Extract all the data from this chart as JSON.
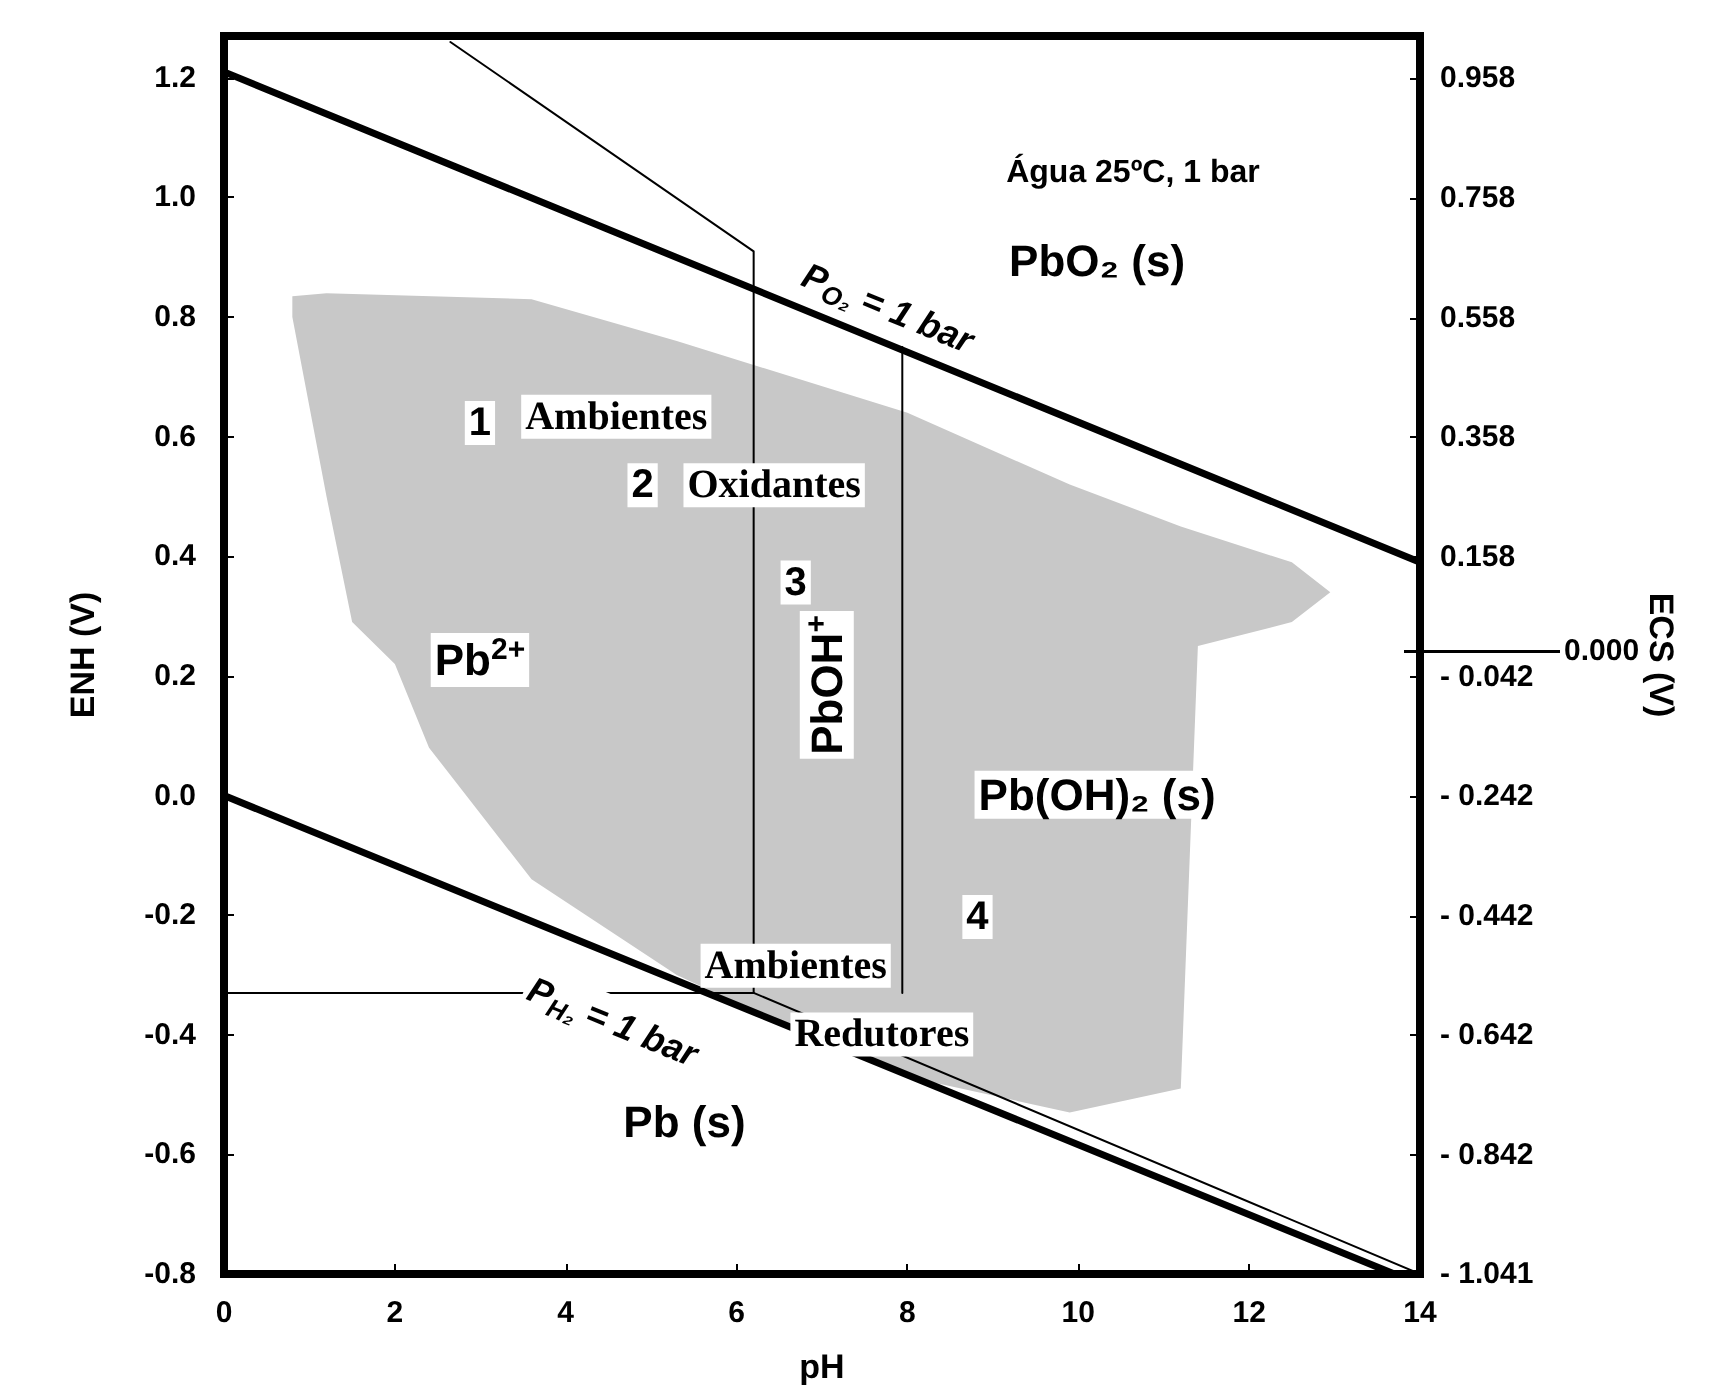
{
  "chart_data": {
    "type": "line",
    "xlabel": "pH",
    "ylabel": "ENH (V)",
    "y2label": "ECS (V)",
    "xlim": [
      0,
      14
    ],
    "xticks": [
      0,
      2,
      4,
      6,
      8,
      10,
      12,
      14
    ],
    "ylim": [
      -0.8,
      1.27
    ],
    "yticks": [
      {
        "value": -0.8,
        "label": "-0.8"
      },
      {
        "value": -0.6,
        "label": "-0.6"
      },
      {
        "value": -0.4,
        "label": "-0.4"
      },
      {
        "value": -0.2,
        "label": "-0.2"
      },
      {
        "value": 0,
        "label": "0.0"
      },
      {
        "value": 0.2,
        "label": "0.2"
      },
      {
        "value": 0.4,
        "label": "0.4"
      },
      {
        "value": 0.6,
        "label": "0.6"
      },
      {
        "value": 0.8,
        "label": "0.8"
      },
      {
        "value": 1,
        "label": "1.0"
      },
      {
        "value": 1.2,
        "label": "1.2"
      }
    ],
    "y2lim": [
      -1.041,
      1.029
    ],
    "y2ticks": [
      0.958,
      0.758,
      0.558,
      0.358,
      0.158,
      {
        "value": -0.042,
        "label": "- 0.042"
      },
      {
        "value": -0.242,
        "label": "- 0.242"
      },
      {
        "value": -0.442,
        "label": "- 0.442"
      },
      {
        "value": -0.642,
        "label": "- 0.642"
      },
      {
        "value": -0.842,
        "label": "- 0.842"
      },
      {
        "value": -1.041,
        "label": "- 1.041"
      }
    ],
    "ref_lines": [
      {
        "axis": "y2",
        "value": 0,
        "label": "0.000",
        "color": "#000000"
      }
    ],
    "grid": false,
    "marker": "none",
    "series": [
      {
        "type": "area",
        "color": "#c8c8c8",
        "x": [
          0.8,
          1.2,
          3.6,
          5.3,
          6.2,
          8.0,
          9.9,
          11.2,
          12.5,
          12.95,
          12.5,
          11.4,
          11.2,
          9.9,
          8.0,
          6.2,
          5.3,
          3.6,
          2.4,
          2.0,
          1.5,
          1.2,
          0.8
        ],
        "values": [
          0.835,
          0.84,
          0.83,
          0.76,
          0.72,
          0.64,
          0.52,
          0.45,
          0.39,
          0.34,
          0.29,
          0.25,
          -0.49,
          -0.53,
          -0.47,
          -0.36,
          -0.3,
          -0.14,
          0.08,
          0.22,
          0.29,
          0.5,
          0.8
        ]
      },
      {
        "color": "#000000",
        "x": [
          0,
          14
        ],
        "values": [
          1.21,
          0.39
        ]
      },
      {
        "color": "#000000",
        "x": [
          0,
          13.7
        ],
        "values": [
          0,
          -0.8
        ]
      },
      {
        "color": "#000000",
        "x": [
          2.65,
          6.2,
          6.2
        ],
        "values": [
          1.26,
          0.91,
          -0.33
        ]
      },
      {
        "color": "#000000",
        "x": [
          7.94,
          7.94
        ],
        "values": [
          0.75,
          -0.33
        ]
      },
      {
        "color": "#000000",
        "x": [
          0,
          6.2,
          14
        ],
        "values": [
          -0.33,
          -0.33,
          -0.8
        ]
      }
    ],
    "annotations": [
      "Água 25ºC, 1 bar",
      "PbO₂ (s)",
      "P$_{O₂}$ = 1 bar",
      "1",
      "Ambientes",
      "2",
      "Oxidantes",
      "3",
      "Pb$^{2+}$",
      "PbOH$^{+}$",
      "Pb(OH)₂ (s)",
      "4",
      "Ambientes",
      "P$_{H₂}$ = 1 bar",
      "Redutores",
      "Pb (s)"
    ]
  }
}
